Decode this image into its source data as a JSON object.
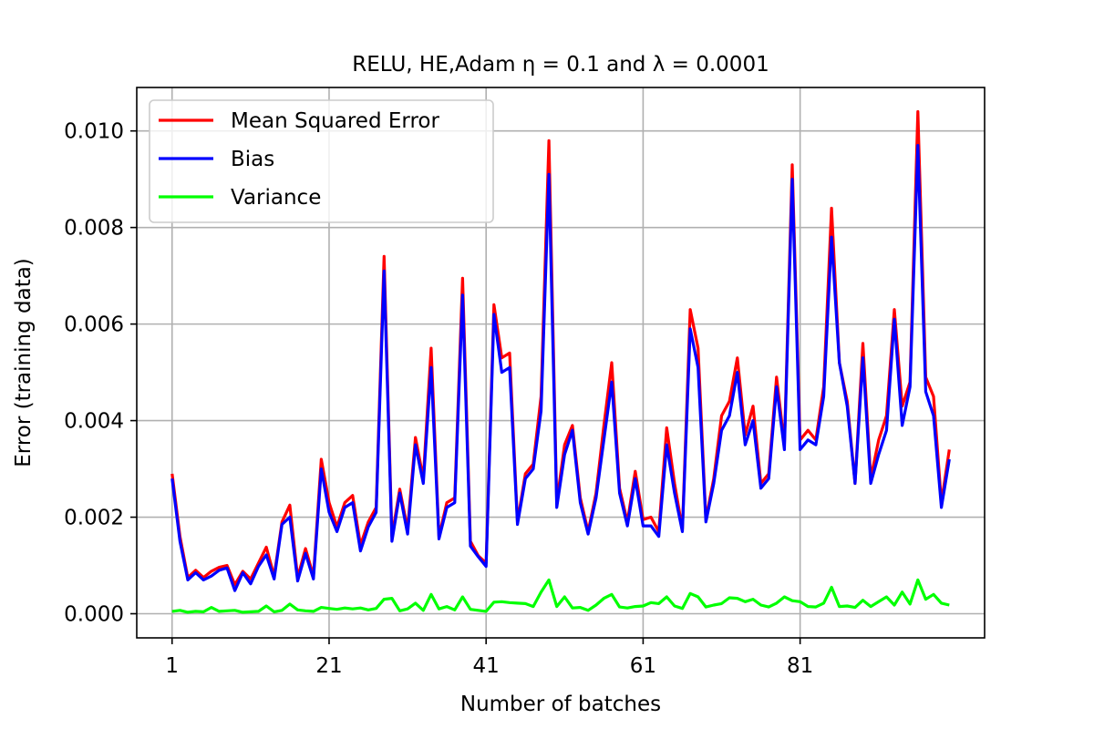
{
  "chart_data": {
    "type": "line",
    "title": "RELU, HE,Adam η = 0.1 and λ = 0.0001",
    "xlabel": "Number of batches",
    "ylabel": "Error (training data)",
    "xlim": [
      -3.5,
      104.5
    ],
    "ylim": [
      -0.0005,
      0.0109
    ],
    "xticks": [
      1,
      21,
      41,
      61,
      81
    ],
    "yticks": [
      0.0,
      0.002,
      0.004,
      0.006,
      0.008,
      0.01
    ],
    "ytick_labels": [
      "0.000",
      "0.002",
      "0.004",
      "0.006",
      "0.008",
      "0.010"
    ],
    "grid": true,
    "legend_position": "upper-left",
    "x": [
      1,
      2,
      3,
      4,
      5,
      6,
      7,
      8,
      9,
      10,
      11,
      12,
      13,
      14,
      15,
      16,
      17,
      18,
      19,
      20,
      21,
      22,
      23,
      24,
      25,
      26,
      27,
      28,
      29,
      30,
      31,
      32,
      33,
      34,
      35,
      36,
      37,
      38,
      39,
      40,
      41,
      42,
      43,
      44,
      45,
      46,
      47,
      48,
      49,
      50,
      51,
      52,
      53,
      54,
      55,
      56,
      57,
      58,
      59,
      60,
      61,
      62,
      63,
      64,
      65,
      66,
      67,
      68,
      69,
      70,
      71,
      72,
      73,
      74,
      75,
      76,
      77,
      78,
      79,
      80,
      81,
      82,
      83,
      84,
      85,
      86,
      87,
      88,
      89,
      90,
      91,
      92,
      93,
      94,
      95,
      96,
      97,
      98,
      99,
      100
    ],
    "series": [
      {
        "name": "Mean Squared Error",
        "color": "#ff0000",
        "values": [
          0.0029,
          0.0016,
          0.00075,
          0.0009,
          0.00075,
          0.00088,
          0.00096,
          0.001,
          0.0006,
          0.00088,
          0.00072,
          0.00105,
          0.00138,
          0.00078,
          0.0019,
          0.00225,
          0.00075,
          0.00135,
          0.00078,
          0.0032,
          0.0023,
          0.0018,
          0.0023,
          0.00245,
          0.00142,
          0.0019,
          0.0022,
          0.0074,
          0.0016,
          0.00258,
          0.00175,
          0.00365,
          0.0028,
          0.0055,
          0.0016,
          0.0023,
          0.0024,
          0.00695,
          0.0015,
          0.0012,
          0.00105,
          0.0064,
          0.0053,
          0.0054,
          0.0019,
          0.0029,
          0.0031,
          0.0045,
          0.0098,
          0.0023,
          0.0035,
          0.0039,
          0.0024,
          0.0017,
          0.0025,
          0.0039,
          0.0052,
          0.0026,
          0.0019,
          0.00295,
          0.00195,
          0.002,
          0.0017,
          0.00385,
          0.0027,
          0.00175,
          0.0063,
          0.0055,
          0.00195,
          0.0028,
          0.0041,
          0.0044,
          0.0053,
          0.0037,
          0.0043,
          0.0027,
          0.0029,
          0.0049,
          0.0035,
          0.0093,
          0.0036,
          0.0038,
          0.0036,
          0.0047,
          0.0084,
          0.0052,
          0.0044,
          0.0027,
          0.0056,
          0.0028,
          0.0036,
          0.0041,
          0.0063,
          0.0043,
          0.0048,
          0.0104,
          0.0049,
          0.0045,
          0.0023,
          0.0034
        ]
      },
      {
        "name": "Bias",
        "color": "#0000ff",
        "values": [
          0.0028,
          0.0015,
          0.0007,
          0.00085,
          0.0007,
          0.00078,
          0.0009,
          0.00095,
          0.00048,
          0.00085,
          0.00062,
          0.00098,
          0.00122,
          0.00072,
          0.00185,
          0.002,
          0.00068,
          0.00125,
          0.00072,
          0.003,
          0.0021,
          0.0017,
          0.0022,
          0.0023,
          0.0013,
          0.0018,
          0.0021,
          0.0071,
          0.0015,
          0.0025,
          0.00165,
          0.0035,
          0.0027,
          0.0051,
          0.00155,
          0.0022,
          0.0023,
          0.0066,
          0.0014,
          0.00118,
          0.00098,
          0.0062,
          0.005,
          0.0051,
          0.00185,
          0.0028,
          0.003,
          0.0042,
          0.0091,
          0.0022,
          0.0033,
          0.0038,
          0.0023,
          0.00165,
          0.0024,
          0.0036,
          0.0048,
          0.0025,
          0.00182,
          0.0028,
          0.00182,
          0.00182,
          0.0016,
          0.0035,
          0.0025,
          0.0017,
          0.0059,
          0.0051,
          0.0019,
          0.0027,
          0.0038,
          0.0041,
          0.005,
          0.0035,
          0.004,
          0.0026,
          0.0028,
          0.0047,
          0.0034,
          0.009,
          0.0034,
          0.0036,
          0.0035,
          0.0045,
          0.0078,
          0.0052,
          0.0043,
          0.0027,
          0.0053,
          0.0027,
          0.0033,
          0.0038,
          0.0061,
          0.0039,
          0.0047,
          0.0097,
          0.0046,
          0.0041,
          0.0022,
          0.0032
        ]
      },
      {
        "name": "Variance",
        "color": "#00ff00",
        "values": [
          5e-05,
          7e-05,
          3e-05,
          5e-05,
          4e-05,
          0.00013,
          5e-05,
          6e-05,
          7e-05,
          3e-05,
          4e-05,
          5e-05,
          0.00016,
          4e-05,
          7e-05,
          0.0002,
          8e-05,
          6e-05,
          5e-05,
          0.00013,
          0.00011,
          9e-05,
          0.00012,
          0.0001,
          0.00012,
          8e-05,
          0.00011,
          0.0003,
          0.00032,
          6e-05,
          0.0001,
          0.00022,
          7e-05,
          0.0004,
          0.0001,
          0.00015,
          8e-05,
          0.00035,
          9e-05,
          7e-05,
          5e-05,
          0.00024,
          0.00025,
          0.00023,
          0.00022,
          0.00021,
          0.00015,
          0.00045,
          0.0007,
          0.00015,
          0.00035,
          0.00012,
          0.00013,
          7e-05,
          0.00018,
          0.00032,
          0.0004,
          0.00014,
          0.00012,
          0.00015,
          0.00016,
          0.00023,
          0.00021,
          0.00035,
          0.00016,
          0.00011,
          0.00042,
          0.00035,
          0.00014,
          0.00018,
          0.00021,
          0.00033,
          0.00032,
          0.00025,
          0.0003,
          0.00018,
          0.00014,
          0.00022,
          0.00035,
          0.00027,
          0.00025,
          0.00015,
          0.00014,
          0.00022,
          0.00055,
          0.00015,
          0.00016,
          0.00013,
          0.00028,
          0.00015,
          0.00025,
          0.00035,
          0.00018,
          0.00045,
          0.0002,
          0.0007,
          0.0003,
          0.0004,
          0.00022,
          0.00018
        ]
      }
    ]
  }
}
